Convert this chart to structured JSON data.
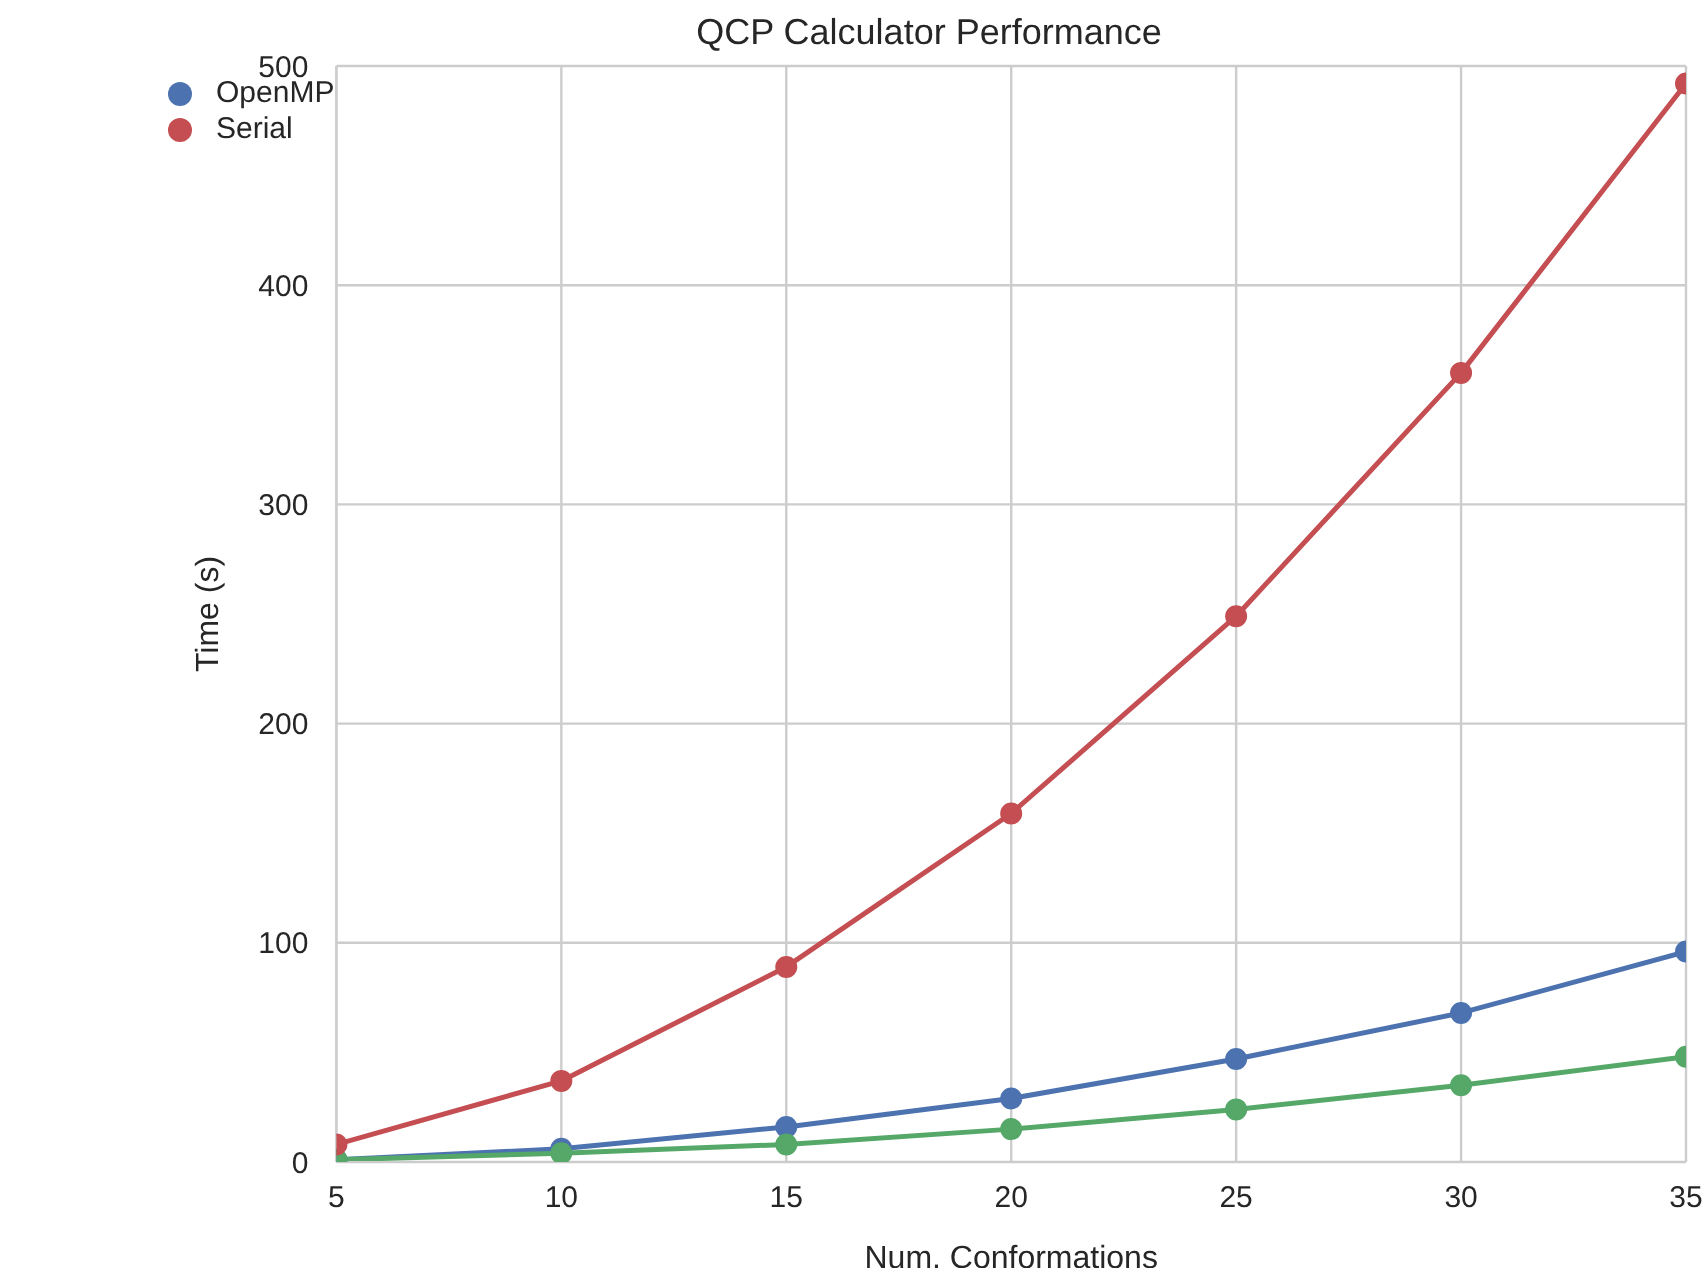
{
  "chart_data": {
    "type": "line",
    "title": "QCP Calculator Performance",
    "xlabel": "Num. Conformations",
    "ylabel": "Time (s)",
    "x": [
      5,
      10,
      15,
      20,
      25,
      30,
      35
    ],
    "series": [
      {
        "name": "OpenMP",
        "color": "#4c72b0",
        "values": [
          1,
          6,
          16,
          29,
          47,
          68,
          96
        ]
      },
      {
        "color": "#55a868",
        "values": [
          1,
          4,
          8,
          15,
          24,
          35,
          48
        ]
      },
      {
        "name": "Serial",
        "color": "#c44e52",
        "values": [
          8,
          37,
          89,
          159,
          249,
          360,
          492
        ]
      }
    ],
    "xlim": [
      5,
      35
    ],
    "xticks": [
      5,
      10,
      15,
      20,
      25,
      30,
      35
    ],
    "ylim": [
      0,
      500
    ],
    "yticks": [
      0,
      100,
      200,
      300,
      400,
      500
    ],
    "grid": true,
    "legend": "top left",
    "marker": "circle",
    "line_style": "solid"
  }
}
